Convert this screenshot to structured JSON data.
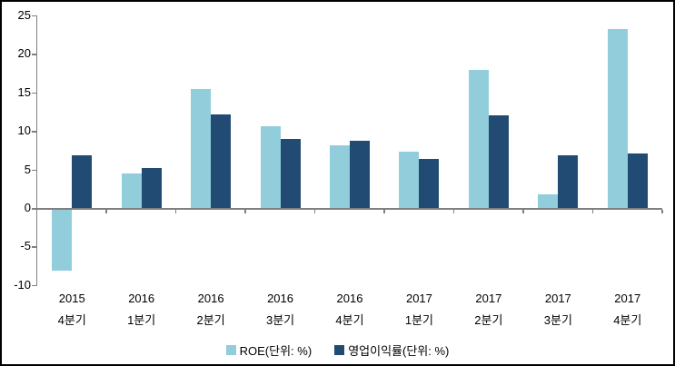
{
  "chart_data": {
    "type": "bar",
    "title": "",
    "categories": [
      {
        "line1": "2015",
        "line2": "4분기"
      },
      {
        "line1": "2016",
        "line2": "1분기"
      },
      {
        "line1": "2016",
        "line2": "2분기"
      },
      {
        "line1": "2016",
        "line2": "3분기"
      },
      {
        "line1": "2016",
        "line2": "4분기"
      },
      {
        "line1": "2017",
        "line2": "1분기"
      },
      {
        "line1": "2017",
        "line2": "2분기"
      },
      {
        "line1": "2017",
        "line2": "3분기"
      },
      {
        "line1": "2017",
        "line2": "4분기"
      }
    ],
    "series": [
      {
        "name": "ROE(단위: %)",
        "color": "#92CDDC",
        "values": [
          -8.0,
          4.5,
          15.4,
          10.6,
          8.1,
          7.3,
          17.9,
          1.8,
          23.2
        ]
      },
      {
        "name": "영업이익률(단위: %)",
        "color": "#214B72",
        "values": [
          6.8,
          5.2,
          12.1,
          9.0,
          8.7,
          6.4,
          12.0,
          6.8,
          7.1
        ]
      }
    ],
    "xlabel": "",
    "ylabel": "",
    "ylim": [
      -10,
      25
    ],
    "yticks": [
      25,
      20,
      15,
      10,
      5,
      0,
      -5,
      -10
    ],
    "grid": false,
    "legend_position": "bottom",
    "axis_color": "#808080",
    "text_color": "#000000",
    "background": "#FFFFFF",
    "frame_color": "#000000"
  }
}
